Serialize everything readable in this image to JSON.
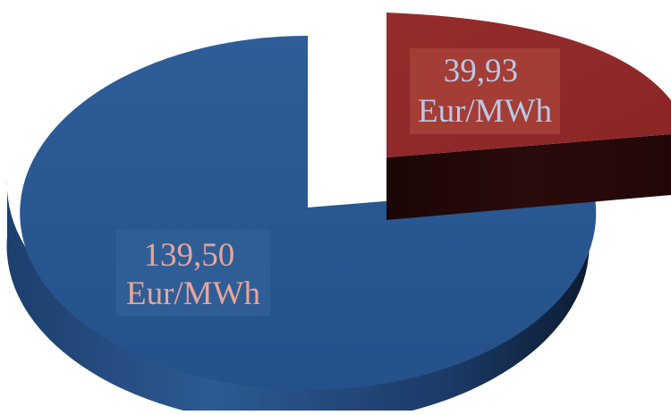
{
  "chart_data": {
    "type": "pie",
    "style": "3d-exploded",
    "slices": [
      {
        "value": 139.5,
        "label_line1": "139,50",
        "label_line2": "Eur/MWh",
        "color": "#26538a",
        "label_color": "#e8a59a",
        "label_bg": "#2f5e97"
      },
      {
        "value": 39.93,
        "label_line1": "39,93",
        "label_line2": "Eur/MWh",
        "color": "#922a2a",
        "label_color": "#b9c8e4",
        "label_bg": "#a43d35",
        "exploded": true
      }
    ],
    "title": "",
    "legend": "none"
  }
}
